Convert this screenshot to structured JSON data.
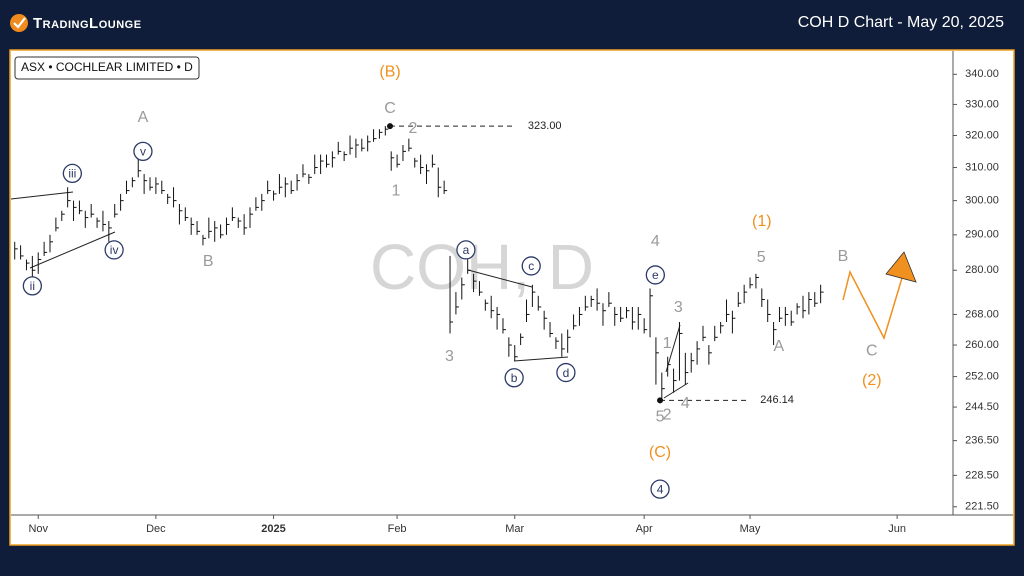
{
  "header": {
    "logo": "TradingLounge",
    "title": "COH D Chart - May 20, 2025"
  },
  "chart_data": {
    "type": "ohlc",
    "legend_text": "ASX • COCHLEAR LIMITED • D",
    "watermark": "COH, D",
    "log": true,
    "ylim": [
      219.7,
      347.6
    ],
    "yticks": [
      {
        "value": 340,
        "label": "340.00"
      },
      {
        "value": 330,
        "label": "330.00"
      },
      {
        "value": 320,
        "label": "320.00"
      },
      {
        "value": 310,
        "label": "310.00"
      },
      {
        "value": 300,
        "label": "300.00"
      },
      {
        "value": 290,
        "label": "290.00"
      },
      {
        "value": 280,
        "label": "280.00"
      },
      {
        "value": 268,
        "label": "268.00"
      },
      {
        "value": 260,
        "label": "260.00"
      },
      {
        "value": 252,
        "label": "252.00"
      },
      {
        "value": 244.5,
        "label": "244.50"
      },
      {
        "value": 236.5,
        "label": "236.50"
      },
      {
        "value": 228.5,
        "label": "228.50"
      },
      {
        "value": 221.5,
        "label": "221.50"
      }
    ],
    "xlim": [
      -4.8,
      155.5
    ],
    "xticks": [
      {
        "value": 0,
        "label": "Nov"
      },
      {
        "value": 20,
        "label": "Dec"
      },
      {
        "value": 40,
        "label": "2025"
      },
      {
        "value": 61,
        "label": "Feb"
      },
      {
        "value": 81,
        "label": "Mar"
      },
      {
        "value": 103,
        "label": "Apr"
      },
      {
        "value": 121,
        "label": "May"
      },
      {
        "value": 146,
        "label": "Jun"
      }
    ],
    "color": "#111111",
    "x": [
      -4,
      -3,
      -2,
      -1,
      0,
      1,
      2,
      3,
      4,
      5,
      6,
      7,
      8,
      9,
      10,
      11,
      12,
      13,
      14,
      15,
      16,
      17,
      18,
      19,
      20,
      21,
      22,
      23,
      24,
      25,
      26,
      27,
      28,
      29,
      30,
      31,
      32,
      33,
      34,
      35,
      36,
      37,
      38,
      39,
      40,
      41,
      42,
      43,
      44,
      45,
      46,
      47,
      48,
      49,
      50,
      51,
      52,
      53,
      54,
      55,
      56,
      57,
      58,
      59,
      60,
      61,
      62,
      63,
      64,
      65,
      66,
      67,
      68,
      69,
      70,
      71,
      72,
      73,
      74,
      75,
      76,
      77,
      78,
      79,
      80,
      81,
      82,
      83,
      84,
      85,
      86,
      87,
      88,
      89,
      90,
      91,
      92,
      93,
      94,
      95,
      96,
      97,
      98,
      99,
      100,
      101,
      102,
      103,
      104,
      105,
      106,
      107,
      108,
      109,
      110,
      111,
      112,
      113,
      114,
      115,
      116,
      117,
      118,
      119,
      120,
      121,
      122,
      123,
      124,
      125,
      126,
      127,
      128,
      129,
      130,
      131,
      132,
      133
    ],
    "high": [
      288,
      287,
      283,
      284,
      285,
      288,
      290,
      295,
      297,
      304,
      300,
      300,
      297,
      299,
      295,
      297,
      294,
      299,
      302,
      306,
      307,
      313,
      308,
      307,
      307,
      306,
      302,
      304,
      299,
      298,
      295,
      294,
      290,
      295,
      294,
      293,
      295,
      298,
      295,
      296,
      298,
      301,
      302,
      306,
      303,
      308,
      307,
      306,
      308,
      311,
      308,
      314,
      314,
      314,
      315,
      318,
      315,
      320,
      319,
      319,
      320,
      322,
      322,
      323,
      315,
      314,
      317,
      319,
      313,
      314,
      311,
      314,
      310,
      306,
      284,
      274,
      278,
      283,
      279,
      277,
      272,
      273,
      270,
      267,
      262,
      260,
      263,
      272,
      276,
      273,
      269,
      266,
      262,
      263,
      264,
      268,
      270,
      273,
      273,
      275,
      271,
      274,
      270,
      270,
      270,
      270,
      270,
      267,
      275,
      262,
      253,
      257,
      254,
      266,
      258,
      258,
      261,
      265,
      260,
      265,
      266,
      272,
      269,
      274,
      276,
      278,
      279,
      275,
      272,
      266,
      270,
      270,
      269,
      271,
      273,
      274,
      274,
      276
    ],
    "low": [
      283,
      283,
      280,
      278,
      279,
      284,
      285,
      291,
      294,
      298,
      294,
      296,
      292,
      295,
      292,
      291,
      288,
      295,
      297,
      302,
      304,
      307,
      302,
      303,
      302,
      302,
      299,
      298,
      293,
      294,
      290,
      290,
      287,
      289,
      288,
      289,
      290,
      294,
      292,
      290,
      292,
      297,
      297,
      302,
      300,
      302,
      301,
      302,
      303,
      307,
      305,
      308,
      308,
      310,
      310,
      314,
      312,
      314,
      313,
      315,
      315,
      318,
      319,
      320,
      309,
      310,
      312,
      315,
      310,
      308,
      305,
      310,
      301,
      302,
      263,
      268,
      272,
      279,
      274,
      273,
      269,
      267,
      264,
      263,
      257,
      256,
      260,
      266,
      270,
      269,
      264,
      262,
      259,
      257,
      258,
      264,
      265,
      269,
      270,
      269,
      265,
      270,
      265,
      266,
      267,
      264,
      264,
      263,
      262,
      250,
      246.14,
      252,
      248,
      251,
      250,
      253,
      255,
      261,
      255,
      261,
      263,
      266,
      263,
      270,
      271,
      275,
      275,
      270,
      266,
      260,
      266,
      265,
      265,
      268,
      267,
      268,
      270,
      271
    ],
    "close": [
      286,
      284,
      282,
      280,
      283,
      285,
      288,
      292,
      296,
      300,
      298,
      297,
      295,
      296,
      294,
      293,
      292,
      296,
      300,
      303,
      306,
      309,
      306,
      304,
      305,
      303,
      301,
      300,
      297,
      295,
      293,
      291,
      289,
      291,
      292,
      290,
      293,
      295,
      294,
      292,
      296,
      298,
      300,
      303,
      302,
      304,
      305,
      303,
      306,
      308,
      307,
      310,
      312,
      311,
      313,
      315,
      314,
      316,
      317,
      316,
      318,
      319,
      321,
      322,
      313,
      311,
      315,
      316,
      312,
      310,
      309,
      311,
      304,
      303,
      266,
      270,
      276,
      280,
      277,
      274,
      271,
      269,
      268,
      264,
      260,
      257,
      262,
      268,
      274,
      270,
      267,
      263,
      261,
      259,
      262,
      265,
      268,
      270,
      272,
      271,
      269,
      271,
      268,
      267,
      269,
      266,
      268,
      264,
      273,
      258,
      249,
      255,
      251,
      263,
      253,
      256,
      259,
      262,
      258,
      262,
      265,
      268,
      267,
      271,
      274,
      276,
      278,
      272,
      268,
      264,
      267,
      268,
      266,
      270,
      269,
      272,
      271,
      274
    ],
    "levels": [
      {
        "value": 323,
        "label": "323.00",
        "from": 59.8,
        "to": 81
      },
      {
        "value": 246.14,
        "label": "246.14",
        "from": 105.7,
        "to": 120.5
      }
    ],
    "wave_labels": [
      {
        "color": "#9a9a9a",
        "circled": false,
        "labels": [
          {
            "text": "A",
            "x": 17.8,
            "y": 326.0
          },
          {
            "text": "B",
            "x": 28.9,
            "y": 282.6
          },
          {
            "text": "C",
            "x": 59.8,
            "y": 328.9
          },
          {
            "text": "2",
            "x": 63.7,
            "y": 322.5
          },
          {
            "text": "1",
            "x": 60.8,
            "y": 303.1
          },
          {
            "text": "3",
            "x": 69.9,
            "y": 257.3
          },
          {
            "text": "4",
            "x": 104.9,
            "y": 288.3
          },
          {
            "text": "3",
            "x": 108.8,
            "y": 270.1
          },
          {
            "text": "1",
            "x": 106.9,
            "y": 260.6
          },
          {
            "text": "5",
            "x": 105.7,
            "y": 242.3
          },
          {
            "text": "2",
            "x": 106.9,
            "y": 242.8
          },
          {
            "text": "4",
            "x": 110.0,
            "y": 245.5
          },
          {
            "text": "5",
            "x": 122.9,
            "y": 283.7
          },
          {
            "text": "A",
            "x": 125.9,
            "y": 259.8
          },
          {
            "text": "B",
            "x": 136.8,
            "y": 284.0
          },
          {
            "text": "C",
            "x": 141.7,
            "y": 258.6
          }
        ]
      },
      {
        "color": "#f0901e",
        "circled": false,
        "labels": [
          {
            "text": "(B)",
            "x": 59.8,
            "y": 341.0
          },
          {
            "text": "(C)",
            "x": 105.7,
            "y": 233.9
          },
          {
            "text": "(1)",
            "x": 123.0,
            "y": 294.0
          },
          {
            "text": "(2)",
            "x": 141.7,
            "y": 251.2
          }
        ]
      },
      {
        "color": "#2b3a67",
        "circled": true,
        "labels": [
          {
            "text": "ii",
            "x": -1.0,
            "y": 275.7
          },
          {
            "text": "iii",
            "x": 5.8,
            "y": 308.2
          },
          {
            "text": "iv",
            "x": 12.9,
            "y": 285.7
          },
          {
            "text": "v",
            "x": 17.8,
            "y": 315.0
          },
          {
            "text": "a",
            "x": 72.7,
            "y": 285.7
          },
          {
            "text": "b",
            "x": 80.9,
            "y": 251.7
          },
          {
            "text": "c",
            "x": 83.8,
            "y": 281.2
          },
          {
            "text": "d",
            "x": 89.7,
            "y": 253.0
          },
          {
            "text": "e",
            "x": 104.9,
            "y": 278.7
          },
          {
            "text": "4",
            "x": 105.7,
            "y": 225.4
          }
        ]
      }
    ]
  }
}
